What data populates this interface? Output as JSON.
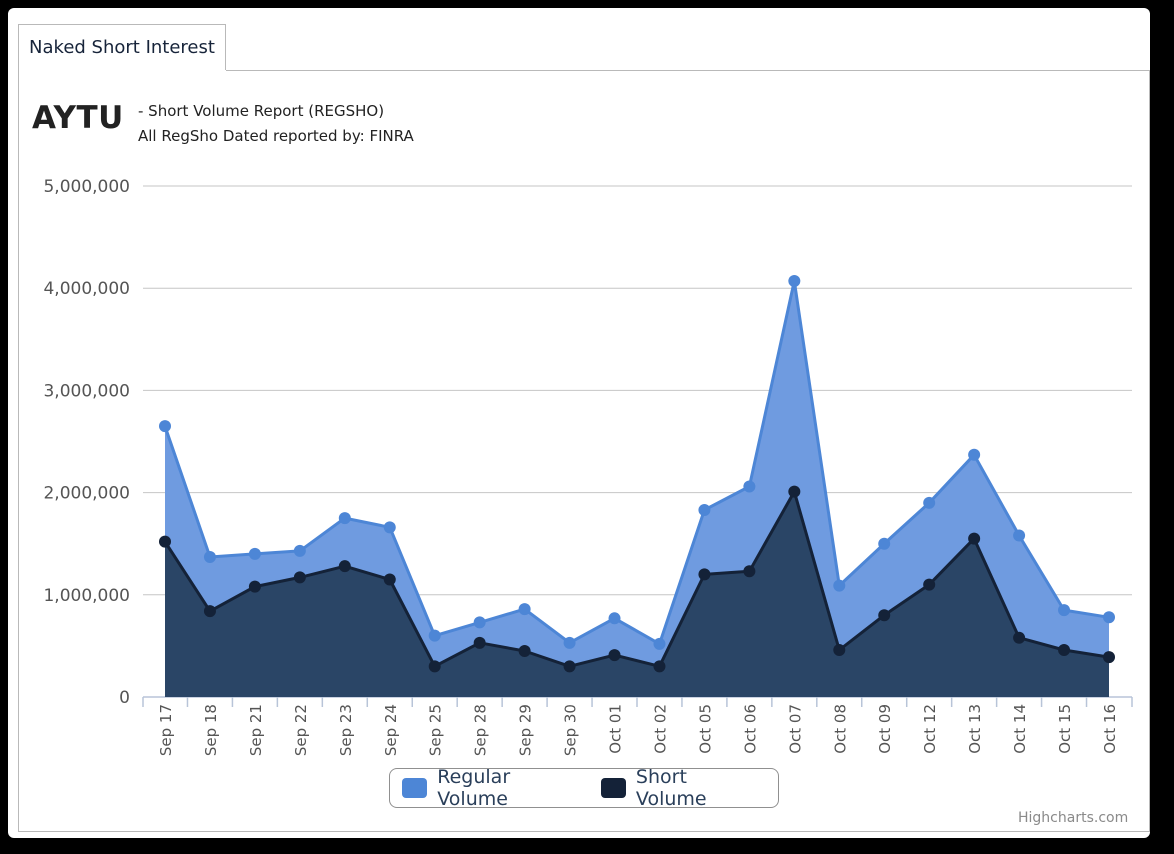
{
  "tab": {
    "label": "Naked Short Interest"
  },
  "header": {
    "ticker": "AYTU",
    "subtitle_line1": "- Short Volume Report  (REGSHO)",
    "subtitle_line2": "All RegSho Dated reported by: FINRA"
  },
  "legend": {
    "regular_label": "Regular Volume",
    "short_label": "Short Volume"
  },
  "credits": "Highcharts.com",
  "colors": {
    "regular": "#4d86d6",
    "regular_fill": "#6f9be0",
    "short": "#142238",
    "short_fill": "#2a4566"
  },
  "chart_data": {
    "type": "area",
    "categories": [
      "Sep 17",
      "Sep 18",
      "Sep 21",
      "Sep 22",
      "Sep 23",
      "Sep 24",
      "Sep 25",
      "Sep 28",
      "Sep 29",
      "Sep 30",
      "Oct 01",
      "Oct 02",
      "Oct 05",
      "Oct 06",
      "Oct 07",
      "Oct 08",
      "Oct 09",
      "Oct 12",
      "Oct 13",
      "Oct 14",
      "Oct 15",
      "Oct 16"
    ],
    "series": [
      {
        "name": "Regular Volume",
        "values": [
          2650000,
          1370000,
          1400000,
          1430000,
          1750000,
          1660000,
          600000,
          730000,
          860000,
          530000,
          770000,
          520000,
          1830000,
          2060000,
          4070000,
          1090000,
          1500000,
          1900000,
          2370000,
          1580000,
          850000,
          780000
        ]
      },
      {
        "name": "Short Volume",
        "values": [
          1520000,
          840000,
          1080000,
          1170000,
          1280000,
          1150000,
          300000,
          530000,
          450000,
          300000,
          410000,
          300000,
          1200000,
          1230000,
          2010000,
          460000,
          800000,
          1100000,
          1550000,
          580000,
          460000,
          390000
        ]
      }
    ],
    "ylim": [
      0,
      5000000
    ],
    "yticks": [
      "0",
      "1,000,000",
      "2,000,000",
      "3,000,000",
      "4,000,000",
      "5,000,000"
    ],
    "ytick_values": [
      0,
      1000000,
      2000000,
      3000000,
      4000000,
      5000000
    ],
    "grid": true,
    "legend_position": "bottom-center"
  }
}
